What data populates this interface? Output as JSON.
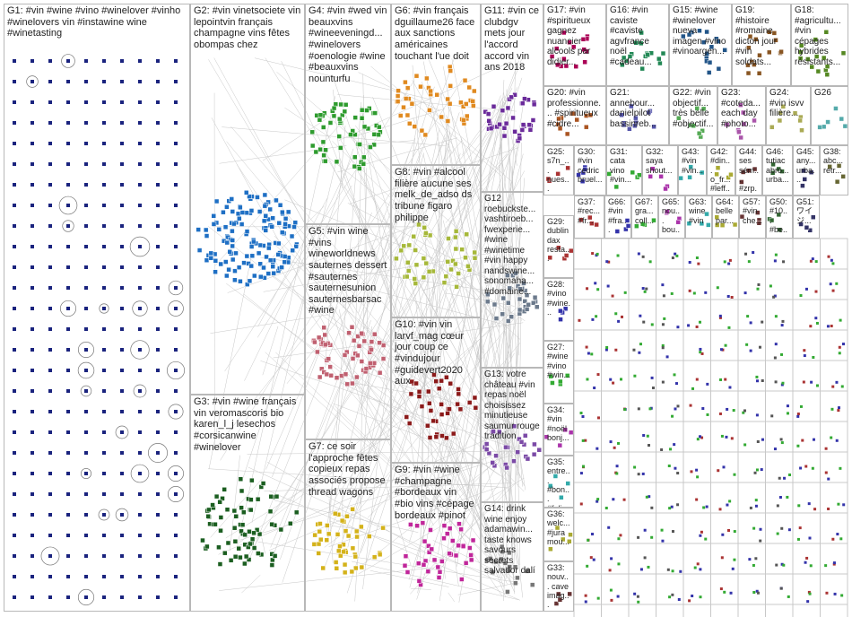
{
  "groups": [
    {
      "label": "G1: #vin #wine #vino #winelover #vinho #winelovers vin #instawine wine #winetasting"
    },
    {
      "label": "G2: #vin vinetsociete vin lepointvin français champagne vins fêtes obompas chez"
    },
    {
      "label": "G3: #vin #wine français vin veromascoris bio karen_l_j lesechos #corsicanwine #winelover"
    },
    {
      "label": "G4: #vin #wed vin beauxvins #wineeveningd... #winelovers #oenologie #wine #beauxvins nounturfu"
    },
    {
      "label": "G5: #vin wine #vins wineworldnews sauternes dessert #sauternes sauternesunion sauternesbarsac #wine"
    },
    {
      "label": "G7: ce soir l'approche fêtes copieux repas associés propose thread wagons"
    },
    {
      "label": "G6: #vin français dguillaume26 face aux sanctions américaines touchant l'ue doit"
    },
    {
      "label": "G8: #vin #alcool filière aucune ses melk_de_adso ds tribune figaro philippe"
    },
    {
      "label": "G10: #vin vin larvf_mag cœur jour coup ce #vindujour #guidevert2020 aux"
    },
    {
      "label": "G9: #vin #wine #champagne #bordeaux vin #bio vins #cépage bordeaux #pinot"
    },
    {
      "label": "G11: #vin ce clubdgv mets jour l'accord accord vin ans 2018"
    },
    {
      "label": "G12 roebuckste... vashtiroeb... fwexperie... #wine #winetime #vin happy nandswine... sonomaha... #domaine..."
    },
    {
      "label": "G13: votre château #vin repas noël choisissez minutieuse saumur rouge tradition"
    },
    {
      "label": "G14: drink wine enjoy adamawin... taste knows savours secrets salvador dalí"
    },
    {
      "label": "G17: #vin #spiritueux gagnez nuancier alcools par didier..."
    },
    {
      "label": "G16: #vin caviste #caviste agvfrance noël #cadeau..."
    },
    {
      "label": "G15: #wine #winelover nueva imagen #vino #vinoargen..."
    },
    {
      "label": "G19: #histoire #romaine dicton jour #vin soldats..."
    },
    {
      "label": "G18: #agricultu... #vin cépages hybrides résistants..."
    },
    {
      "label": "G20: #vin professionne... #spiritueux #cidre..."
    },
    {
      "label": "G21: annebour... danielpilot bassinreb..."
    },
    {
      "label": "G22: #vin objectif... très belle #objectif..."
    },
    {
      "label": "G23: #coteda... each day #photo..."
    },
    {
      "label": "G24: #vin isvv filière..."
    },
    {
      "label": "G26"
    },
    {
      "label": "G25: s7n_... nues... hem... com..."
    },
    {
      "label": "G30: #vin cedric bruel..."
    },
    {
      "label": "G31: cata vino #vin..."
    },
    {
      "label": "G32: saya shout..."
    },
    {
      "label": "G43: #vin #vin..."
    },
    {
      "label": "G42: #din... o_fr... #leff..."
    },
    {
      "label": "G44: ses sém... #zrp..."
    },
    {
      "label": "G46: tutiac abro... urba..."
    },
    {
      "label": "G45: any... urba..."
    },
    {
      "label": "G38: abc... retr..."
    },
    {
      "label": "G37: #rec... #fr..."
    },
    {
      "label": "G66: #vin #fra..."
    },
    {
      "label": "G67: gra... coll..."
    },
    {
      "label": "G65: nou... bou..."
    },
    {
      "label": "G63: wine #vin"
    },
    {
      "label": "G64: belle par..."
    },
    {
      "label": "G57: #vin che..."
    },
    {
      "label": "G50: #10... #be..."
    },
    {
      "label": "G51: ワイ ジ..."
    },
    {
      "label": "G29: dublin dax resta..."
    },
    {
      "label": "G28: #vino #wine..."
    },
    {
      "label": "G27: #wine #vino #win..."
    },
    {
      "label": "G34: #vin #noël bonj..."
    },
    {
      "label": "G35: entre... #bon... #feli..."
    },
    {
      "label": "G36: welc... #jura mou..."
    },
    {
      "label": "G33: nouv... cave imag..."
    }
  ]
}
